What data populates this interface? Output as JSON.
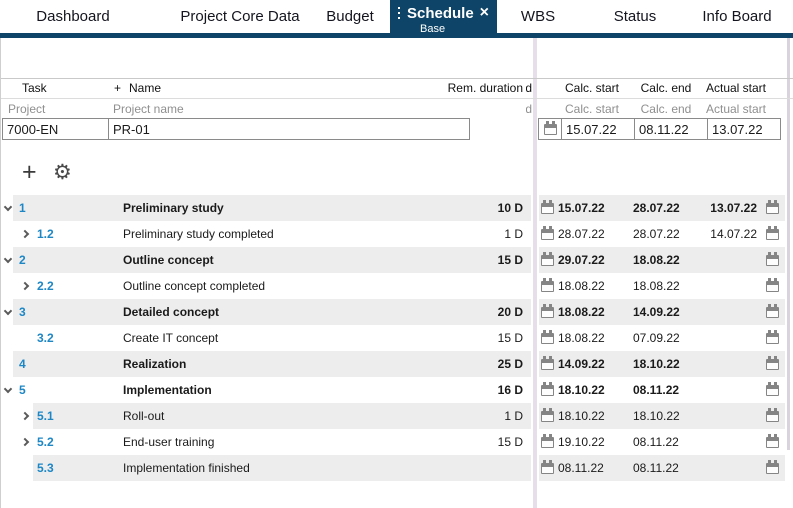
{
  "colors": {
    "accent_navy": "#0e4467",
    "link_blue": "#1d87c6",
    "row_shade": "#ededed",
    "splitter": "#e6dee9"
  },
  "tabs": {
    "items": [
      {
        "label": "Dashboard"
      },
      {
        "label": "Project Core Data"
      },
      {
        "label": "Budget"
      },
      {
        "label": "Schedule",
        "sublabel": "Base",
        "active": true
      },
      {
        "label": "WBS"
      },
      {
        "label": "Status"
      },
      {
        "label": "Info Board"
      }
    ],
    "close_glyph": "×"
  },
  "columns": {
    "task": "Task",
    "name_plus": "+",
    "name": "Name",
    "rem_duration": "Rem. duration",
    "clipped_fragment": "d",
    "calc_start": "Calc. start",
    "calc_end": "Calc. end",
    "actual_start": "Actual start"
  },
  "subheader": {
    "task": "Project",
    "name": "Project name",
    "clipped_fragment": "d",
    "calc_start": "Calc. start",
    "calc_end": "Calc. end",
    "actual_start": "Actual start"
  },
  "project_row": {
    "task_id": "7000-EN",
    "name": "PR-01",
    "calc_start": "15.07.22",
    "calc_end": "08.11.22",
    "actual_start": "13.07.22"
  },
  "toolbar": {
    "add_glyph": "+",
    "gear_glyph": "⚙"
  },
  "rows": [
    {
      "num": "1",
      "level": 1,
      "chevron": "down",
      "parent": true,
      "shaded": true,
      "name": "Preliminary study",
      "rem": "10 D",
      "calc_start": "15.07.22",
      "calc_end": "28.07.22",
      "actual_start": "13.07.22"
    },
    {
      "num": "1.2",
      "level": 2,
      "chevron": "right",
      "parent": false,
      "shaded": false,
      "name": "Preliminary study completed",
      "rem": "1 D",
      "calc_start": "28.07.22",
      "calc_end": "28.07.22",
      "actual_start": "14.07.22"
    },
    {
      "num": "2",
      "level": 1,
      "chevron": "down",
      "parent": true,
      "shaded": true,
      "name": "Outline concept",
      "rem": "15 D",
      "calc_start": "29.07.22",
      "calc_end": "18.08.22",
      "actual_start": ""
    },
    {
      "num": "2.2",
      "level": 2,
      "chevron": "right",
      "parent": false,
      "shaded": false,
      "name": "Outline concept completed",
      "rem": "",
      "calc_start": "18.08.22",
      "calc_end": "18.08.22",
      "actual_start": ""
    },
    {
      "num": "3",
      "level": 1,
      "chevron": "down",
      "parent": true,
      "shaded": true,
      "name": "Detailed concept",
      "rem": "20 D",
      "calc_start": "18.08.22",
      "calc_end": "14.09.22",
      "actual_start": ""
    },
    {
      "num": "3.2",
      "level": 2,
      "chevron": "none",
      "parent": false,
      "shaded": false,
      "name": "Create IT concept",
      "rem": "15 D",
      "calc_start": "18.08.22",
      "calc_end": "07.09.22",
      "actual_start": ""
    },
    {
      "num": "4",
      "level": 1,
      "chevron": "none",
      "parent": true,
      "shaded": true,
      "name": "Realization",
      "rem": "25 D",
      "calc_start": "14.09.22",
      "calc_end": "18.10.22",
      "actual_start": ""
    },
    {
      "num": "5",
      "level": 1,
      "chevron": "down",
      "parent": true,
      "shaded": false,
      "name": "Implementation",
      "rem": "16 D",
      "calc_start": "18.10.22",
      "calc_end": "08.11.22",
      "actual_start": ""
    },
    {
      "num": "5.1",
      "level": 2,
      "chevron": "right",
      "parent": false,
      "shaded": true,
      "name": "Roll-out",
      "rem": "1 D",
      "calc_start": "18.10.22",
      "calc_end": "18.10.22",
      "actual_start": ""
    },
    {
      "num": "5.2",
      "level": 2,
      "chevron": "right",
      "parent": false,
      "shaded": false,
      "name": "End-user training",
      "rem": "15 D",
      "calc_start": "19.10.22",
      "calc_end": "08.11.22",
      "actual_start": ""
    },
    {
      "num": "5.3",
      "level": 2,
      "chevron": "none",
      "parent": false,
      "shaded": true,
      "name": "Implementation finished",
      "rem": "",
      "calc_start": "08.11.22",
      "calc_end": "08.11.22",
      "actual_start": ""
    }
  ]
}
